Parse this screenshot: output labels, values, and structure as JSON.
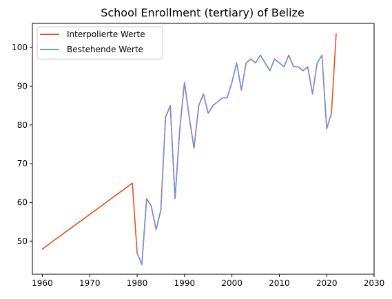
{
  "chart_data": {
    "type": "line",
    "title": "School Enrollment (tertiary) of Belize",
    "xlabel": "",
    "ylabel": "",
    "xlim": [
      1957.9,
      2030
    ],
    "ylim": [
      41.5,
      106.2
    ],
    "xticks": [
      1960,
      1970,
      1980,
      1990,
      2000,
      2010,
      2020,
      2030
    ],
    "yticks": [
      50,
      60,
      70,
      80,
      90,
      100
    ],
    "grid": false,
    "legend_position": "top-left",
    "series": [
      {
        "name": "Interpolierte Werte",
        "color": "#e8501a",
        "x": [
          1960,
          1979,
          1980,
          1981,
          1982,
          1983,
          1984,
          1985,
          1986,
          1987,
          1988,
          1989,
          1990,
          1991,
          1992,
          1993,
          1994,
          1995,
          1996,
          1997,
          1998,
          1999,
          2000,
          2001,
          2002,
          2003,
          2004,
          2005,
          2006,
          2007,
          2008,
          2009,
          2010,
          2011,
          2012,
          2013,
          2014,
          2015,
          2016,
          2017,
          2018,
          2019,
          2020,
          2021,
          2022
        ],
        "y": [
          48,
          65,
          47,
          44,
          61,
          59,
          53,
          58,
          82,
          85,
          61,
          79,
          91,
          82,
          74,
          85,
          88,
          83,
          85,
          86,
          87,
          87,
          91,
          96,
          89,
          96,
          97,
          96,
          98,
          96,
          94,
          97,
          96,
          95,
          98,
          95,
          95,
          94,
          95,
          88,
          96,
          98,
          79,
          83,
          103.5
        ]
      },
      {
        "name": "Bestehende Werte",
        "color": "#7191d9",
        "x": [
          1980,
          1981,
          1982,
          1983,
          1984,
          1985,
          1986,
          1987,
          1988,
          1989,
          1990,
          1991,
          1992,
          1993,
          1994,
          1995,
          1996,
          1997,
          1998,
          1999,
          2000,
          2001,
          2002,
          2003,
          2004,
          2005,
          2006,
          2007,
          2008,
          2009,
          2010,
          2011,
          2012,
          2013,
          2014,
          2015,
          2016,
          2017,
          2018,
          2019,
          2020,
          2021
        ],
        "y": [
          47,
          44,
          61,
          59,
          53,
          58,
          82,
          85,
          61,
          79,
          91,
          82,
          74,
          85,
          88,
          83,
          85,
          86,
          87,
          87,
          91,
          96,
          89,
          96,
          97,
          96,
          98,
          96,
          94,
          97,
          96,
          95,
          98,
          95,
          95,
          94,
          95,
          88,
          96,
          98,
          79,
          83
        ]
      }
    ]
  }
}
